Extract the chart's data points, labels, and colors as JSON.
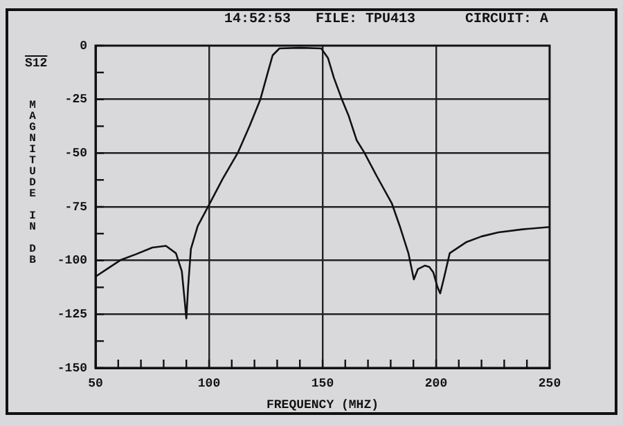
{
  "chart_data": {
    "type": "line",
    "xlabel": "FREQUENCY (MHZ)",
    "ylabel": "MAGNITUDE IN DB",
    "annotations": [
      "14:52:53",
      "FILE: TPU413",
      "CIRCUIT: A",
      "S12"
    ],
    "series": [
      {
        "color": "#111111",
        "x": [
          50,
          55,
          61,
          68,
          75,
          81,
          85.4,
          88,
          89.2,
          90,
          90.8,
          92,
          95,
          99.4,
          106,
          112.8,
          118,
          122.6,
          126,
          128,
          131,
          140,
          149.4,
          152.4,
          155,
          158.5,
          161.4,
          165,
          168.3,
          174,
          180.5,
          184,
          187.8,
          190.2,
          192,
          195,
          197,
          198.8,
          200.5,
          201.8,
          203.5,
          206,
          213.4,
          220,
          227.4,
          238,
          250
        ],
        "values": [
          -107.5,
          -104,
          -99.8,
          -97,
          -94,
          -93.2,
          -96.6,
          -105,
          -118,
          -127,
          -112,
          -94.7,
          -84,
          -75.3,
          -62,
          -49.6,
          -37,
          -25,
          -12,
          -4.5,
          -1.3,
          -1,
          -1.3,
          -5.8,
          -15,
          -25,
          -32.4,
          -44,
          -49.6,
          -61,
          -73.4,
          -84,
          -96.6,
          -108.8,
          -104,
          -102.4,
          -103,
          -105.6,
          -112,
          -115.3,
          -108,
          -96.6,
          -91.4,
          -88.8,
          -86.9,
          -85.5,
          -84.4
        ]
      }
    ],
    "xlim": [
      50,
      250
    ],
    "xticks": [
      50,
      {
        "value": 60,
        "label": null
      },
      {
        "value": 70,
        "label": null
      },
      {
        "value": 80,
        "label": null
      },
      {
        "value": 90,
        "label": null
      },
      100,
      {
        "value": 110,
        "label": null
      },
      {
        "value": 120,
        "label": null
      },
      {
        "value": 130,
        "label": null
      },
      {
        "value": 140,
        "label": null
      },
      150,
      {
        "value": 160,
        "label": null
      },
      {
        "value": 170,
        "label": null
      },
      {
        "value": 180,
        "label": null
      },
      {
        "value": 190,
        "label": null
      },
      200,
      {
        "value": 210,
        "label": null
      },
      {
        "value": 220,
        "label": null
      },
      {
        "value": 230,
        "label": null
      },
      {
        "value": 240,
        "label": null
      },
      250
    ],
    "ylim": [
      -150,
      0
    ],
    "yticks": [
      -150,
      {
        "value": -137.5,
        "label": null
      },
      -125,
      {
        "value": -112.5,
        "label": null
      },
      -100,
      {
        "value": -87.5,
        "label": null
      },
      -75,
      {
        "value": -62.5,
        "label": null
      },
      -50,
      {
        "value": -37.5,
        "label": null
      },
      -25,
      {
        "value": -12.5,
        "label": null
      },
      0
    ],
    "grid": true,
    "marker": "none",
    "line_style": "solid",
    "legend": false
  }
}
